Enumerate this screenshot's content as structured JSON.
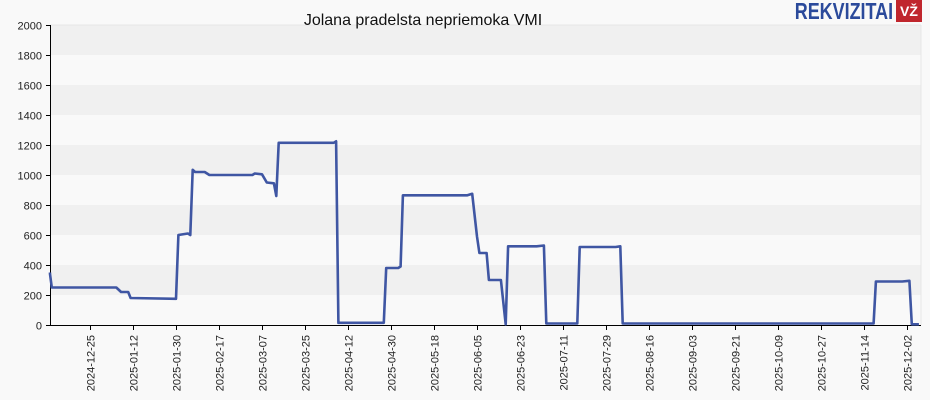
{
  "title": "Jolana pradelsta nepriemoka VMI",
  "logo": {
    "text": "REKVIZITAI",
    "badge": "VŽ",
    "text_color": "#2b4a9b",
    "badge_color": "#c0262d"
  },
  "colors": {
    "line": "#3f56a3",
    "band_dark": "#f0f0f0",
    "band_light": "#f9f9f9",
    "axis": "#000000"
  },
  "chart_data": {
    "type": "line",
    "title": "Jolana pradelsta nepriemoka VMI",
    "xlabel": "",
    "ylabel": "",
    "ylim": [
      0,
      2000
    ],
    "yticks": [
      0,
      200,
      400,
      600,
      800,
      1000,
      1200,
      1400,
      1600,
      1800,
      2000
    ],
    "xticks": [
      "2024-12-25",
      "2025-01-12",
      "2025-01-30",
      "2025-02-17",
      "2025-03-07",
      "2025-03-25",
      "2025-04-12",
      "2025-04-30",
      "2025-05-18",
      "2025-06-05",
      "2025-06-23",
      "2025-07-11",
      "2025-07-29",
      "2025-08-16",
      "2025-09-03",
      "2025-09-21",
      "2025-10-09",
      "2025-10-27",
      "2025-11-14",
      "2025-12-02"
    ],
    "grid": "horizontal alternating bands",
    "legend": "none",
    "series": [
      {
        "name": "Jolana pradelsta nepriemoka VMI",
        "points": [
          [
            "2024-12-06",
            350
          ],
          [
            "2024-12-08",
            340
          ],
          [
            "2024-12-09",
            250
          ],
          [
            "2025-01-05",
            250
          ],
          [
            "2025-01-07",
            220
          ],
          [
            "2025-01-10",
            220
          ],
          [
            "2025-01-11",
            180
          ],
          [
            "2025-01-30",
            175
          ],
          [
            "2025-01-31",
            600
          ],
          [
            "2025-02-04",
            610
          ],
          [
            "2025-02-05",
            600
          ],
          [
            "2025-02-06",
            1035
          ],
          [
            "2025-02-07",
            1020
          ],
          [
            "2025-02-11",
            1020
          ],
          [
            "2025-02-13",
            1000
          ],
          [
            "2025-03-03",
            1000
          ],
          [
            "2025-03-04",
            1010
          ],
          [
            "2025-03-07",
            1005
          ],
          [
            "2025-03-09",
            950
          ],
          [
            "2025-03-12",
            945
          ],
          [
            "2025-03-13",
            860
          ],
          [
            "2025-03-14",
            1215
          ],
          [
            "2025-04-06",
            1215
          ],
          [
            "2025-04-07",
            1225
          ],
          [
            "2025-04-08",
            15
          ],
          [
            "2025-04-27",
            15
          ],
          [
            "2025-04-28",
            380
          ],
          [
            "2025-05-03",
            380
          ],
          [
            "2025-05-04",
            390
          ],
          [
            "2025-05-05",
            865
          ],
          [
            "2025-06-01",
            865
          ],
          [
            "2025-06-03",
            875
          ],
          [
            "2025-06-05",
            590
          ],
          [
            "2025-06-06",
            480
          ],
          [
            "2025-06-09",
            480
          ],
          [
            "2025-06-10",
            300
          ],
          [
            "2025-06-15",
            300
          ],
          [
            "2025-06-17",
            5
          ],
          [
            "2025-06-18",
            525
          ],
          [
            "2025-06-30",
            525
          ],
          [
            "2025-07-03",
            530
          ],
          [
            "2025-07-04",
            10
          ],
          [
            "2025-07-17",
            10
          ],
          [
            "2025-07-18",
            520
          ],
          [
            "2025-08-02",
            520
          ],
          [
            "2025-08-04",
            525
          ],
          [
            "2025-08-05",
            10
          ],
          [
            "2025-11-18",
            10
          ],
          [
            "2025-11-19",
            290
          ],
          [
            "2025-11-30",
            290
          ],
          [
            "2025-12-03",
            295
          ],
          [
            "2025-12-04",
            5
          ],
          [
            "2025-12-07",
            5
          ]
        ]
      }
    ]
  }
}
